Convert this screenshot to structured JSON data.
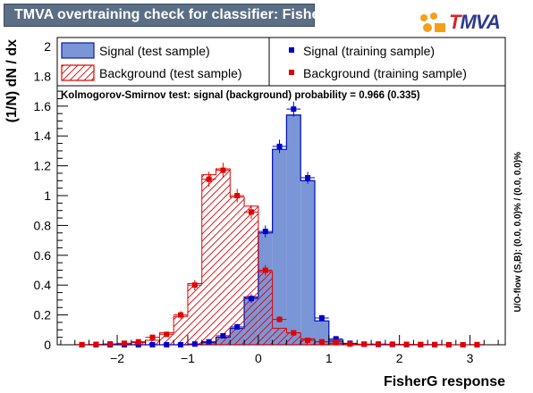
{
  "header": {
    "title": "TMVA overtraining check for classifier: FisherG"
  },
  "logo": {
    "first_letter": "T",
    "rest": "MVA"
  },
  "chart_data": {
    "type": "bar",
    "xlabel": "FisherG response",
    "ylabel": "(1/N) dN / dx",
    "side_label": "U/O-flow (S,B): (0.0, 0.0)% / (0.0, 0.0)%",
    "ks_text": "Kolmogorov-Smirnov test: signal (background) probability = 0.966 (0.335)",
    "xlim": [
      -2.85,
      3.5
    ],
    "ylim": [
      0,
      2.06
    ],
    "xticks": [
      -2,
      -1,
      0,
      1,
      2,
      3
    ],
    "xtick_labels": [
      "−2",
      "−1",
      "0",
      "1",
      "2",
      "3"
    ],
    "yticks": [
      0,
      0.2,
      0.4,
      0.6,
      0.8,
      1,
      1.2,
      1.4,
      1.6,
      1.8,
      2
    ],
    "ytick_labels": [
      "0",
      "0.2",
      "0.4",
      "0.6",
      "0.8",
      "1",
      "1.2",
      "1.4",
      "1.6",
      "1.8",
      "2"
    ],
    "bin_width": 0.2,
    "bin_centers": [
      -2.5,
      -2.3,
      -2.1,
      -1.9,
      -1.7,
      -1.5,
      -1.3,
      -1.1,
      -0.9,
      -0.7,
      -0.5,
      -0.3,
      -0.1,
      0.1,
      0.3,
      0.5,
      0.7,
      0.9,
      1.1,
      1.3,
      1.5,
      1.7,
      1.9,
      2.1,
      2.3,
      2.5,
      2.7,
      2.9,
      3.1
    ],
    "colors": {
      "signal_fill": "#7b96d6",
      "signal_line": "#0a1ab0",
      "background_line": "#e00000",
      "signal_marker": "#0000cc",
      "background_marker": "#e00000"
    },
    "series": [
      {
        "name": "Signal (test sample)",
        "style": "filled-histogram",
        "values": [
          0,
          0,
          0,
          0,
          0,
          0,
          0,
          0,
          0.003,
          0.015,
          0.05,
          0.11,
          0.32,
          0.75,
          1.31,
          1.54,
          1.1,
          0.16,
          0.03,
          0.005,
          0.002,
          0.001,
          0,
          0,
          0,
          0,
          0,
          0,
          0
        ]
      },
      {
        "name": "Background (test sample)",
        "style": "hatched-histogram",
        "values": [
          0.001,
          0.002,
          0.003,
          0.005,
          0.015,
          0.03,
          0.08,
          0.19,
          0.41,
          1.14,
          1.18,
          0.99,
          0.93,
          0.49,
          0.11,
          0.08,
          0.04,
          0.02,
          0.01,
          0.004,
          0.003,
          0.002,
          0.001,
          0.001,
          0,
          0,
          0,
          0,
          0.001
        ]
      },
      {
        "name": "Signal (training sample)",
        "style": "points",
        "values": [
          0,
          0,
          0,
          0,
          0,
          0,
          0,
          0,
          0.005,
          0.02,
          0.06,
          0.12,
          0.31,
          0.76,
          1.33,
          1.58,
          1.12,
          0.18,
          0.04,
          0.01,
          0.004,
          0.002,
          0.002,
          0.001,
          0.001,
          0.001,
          0,
          0,
          0
        ]
      },
      {
        "name": "Background (training sample)",
        "style": "points",
        "values": [
          0.001,
          0.003,
          0.006,
          0.01,
          0.02,
          0.05,
          0.07,
          0.2,
          0.4,
          1.11,
          1.17,
          1.0,
          0.89,
          0.5,
          0.17,
          0.08,
          0.03,
          0.02,
          0.02,
          0.005,
          0.004,
          0.005,
          0.004,
          0.003,
          0.002,
          0.001,
          0,
          0,
          0.001
        ]
      }
    ],
    "errors": {
      "signal_training": [
        0,
        0,
        0,
        0,
        0,
        0,
        0,
        0,
        0.005,
        0.01,
        0.015,
        0.02,
        0.03,
        0.04,
        0.045,
        0.05,
        0.04,
        0.02,
        0.01,
        0.005,
        0.003,
        0.002,
        0.002,
        0.001,
        0.001,
        0.001,
        0,
        0,
        0
      ],
      "background_training": [
        0.001,
        0.003,
        0.004,
        0.005,
        0.008,
        0.012,
        0.015,
        0.025,
        0.035,
        0.05,
        0.05,
        0.045,
        0.045,
        0.035,
        0.02,
        0.015,
        0.01,
        0.008,
        0.008,
        0.004,
        0.004,
        0.004,
        0.004,
        0.003,
        0.002,
        0.001,
        0,
        0,
        0.001
      ]
    },
    "legend": {
      "placement": "top",
      "entries": [
        "Signal (test sample)",
        "Signal (training sample)",
        "Background (test sample)",
        "Background (training sample)"
      ]
    }
  }
}
